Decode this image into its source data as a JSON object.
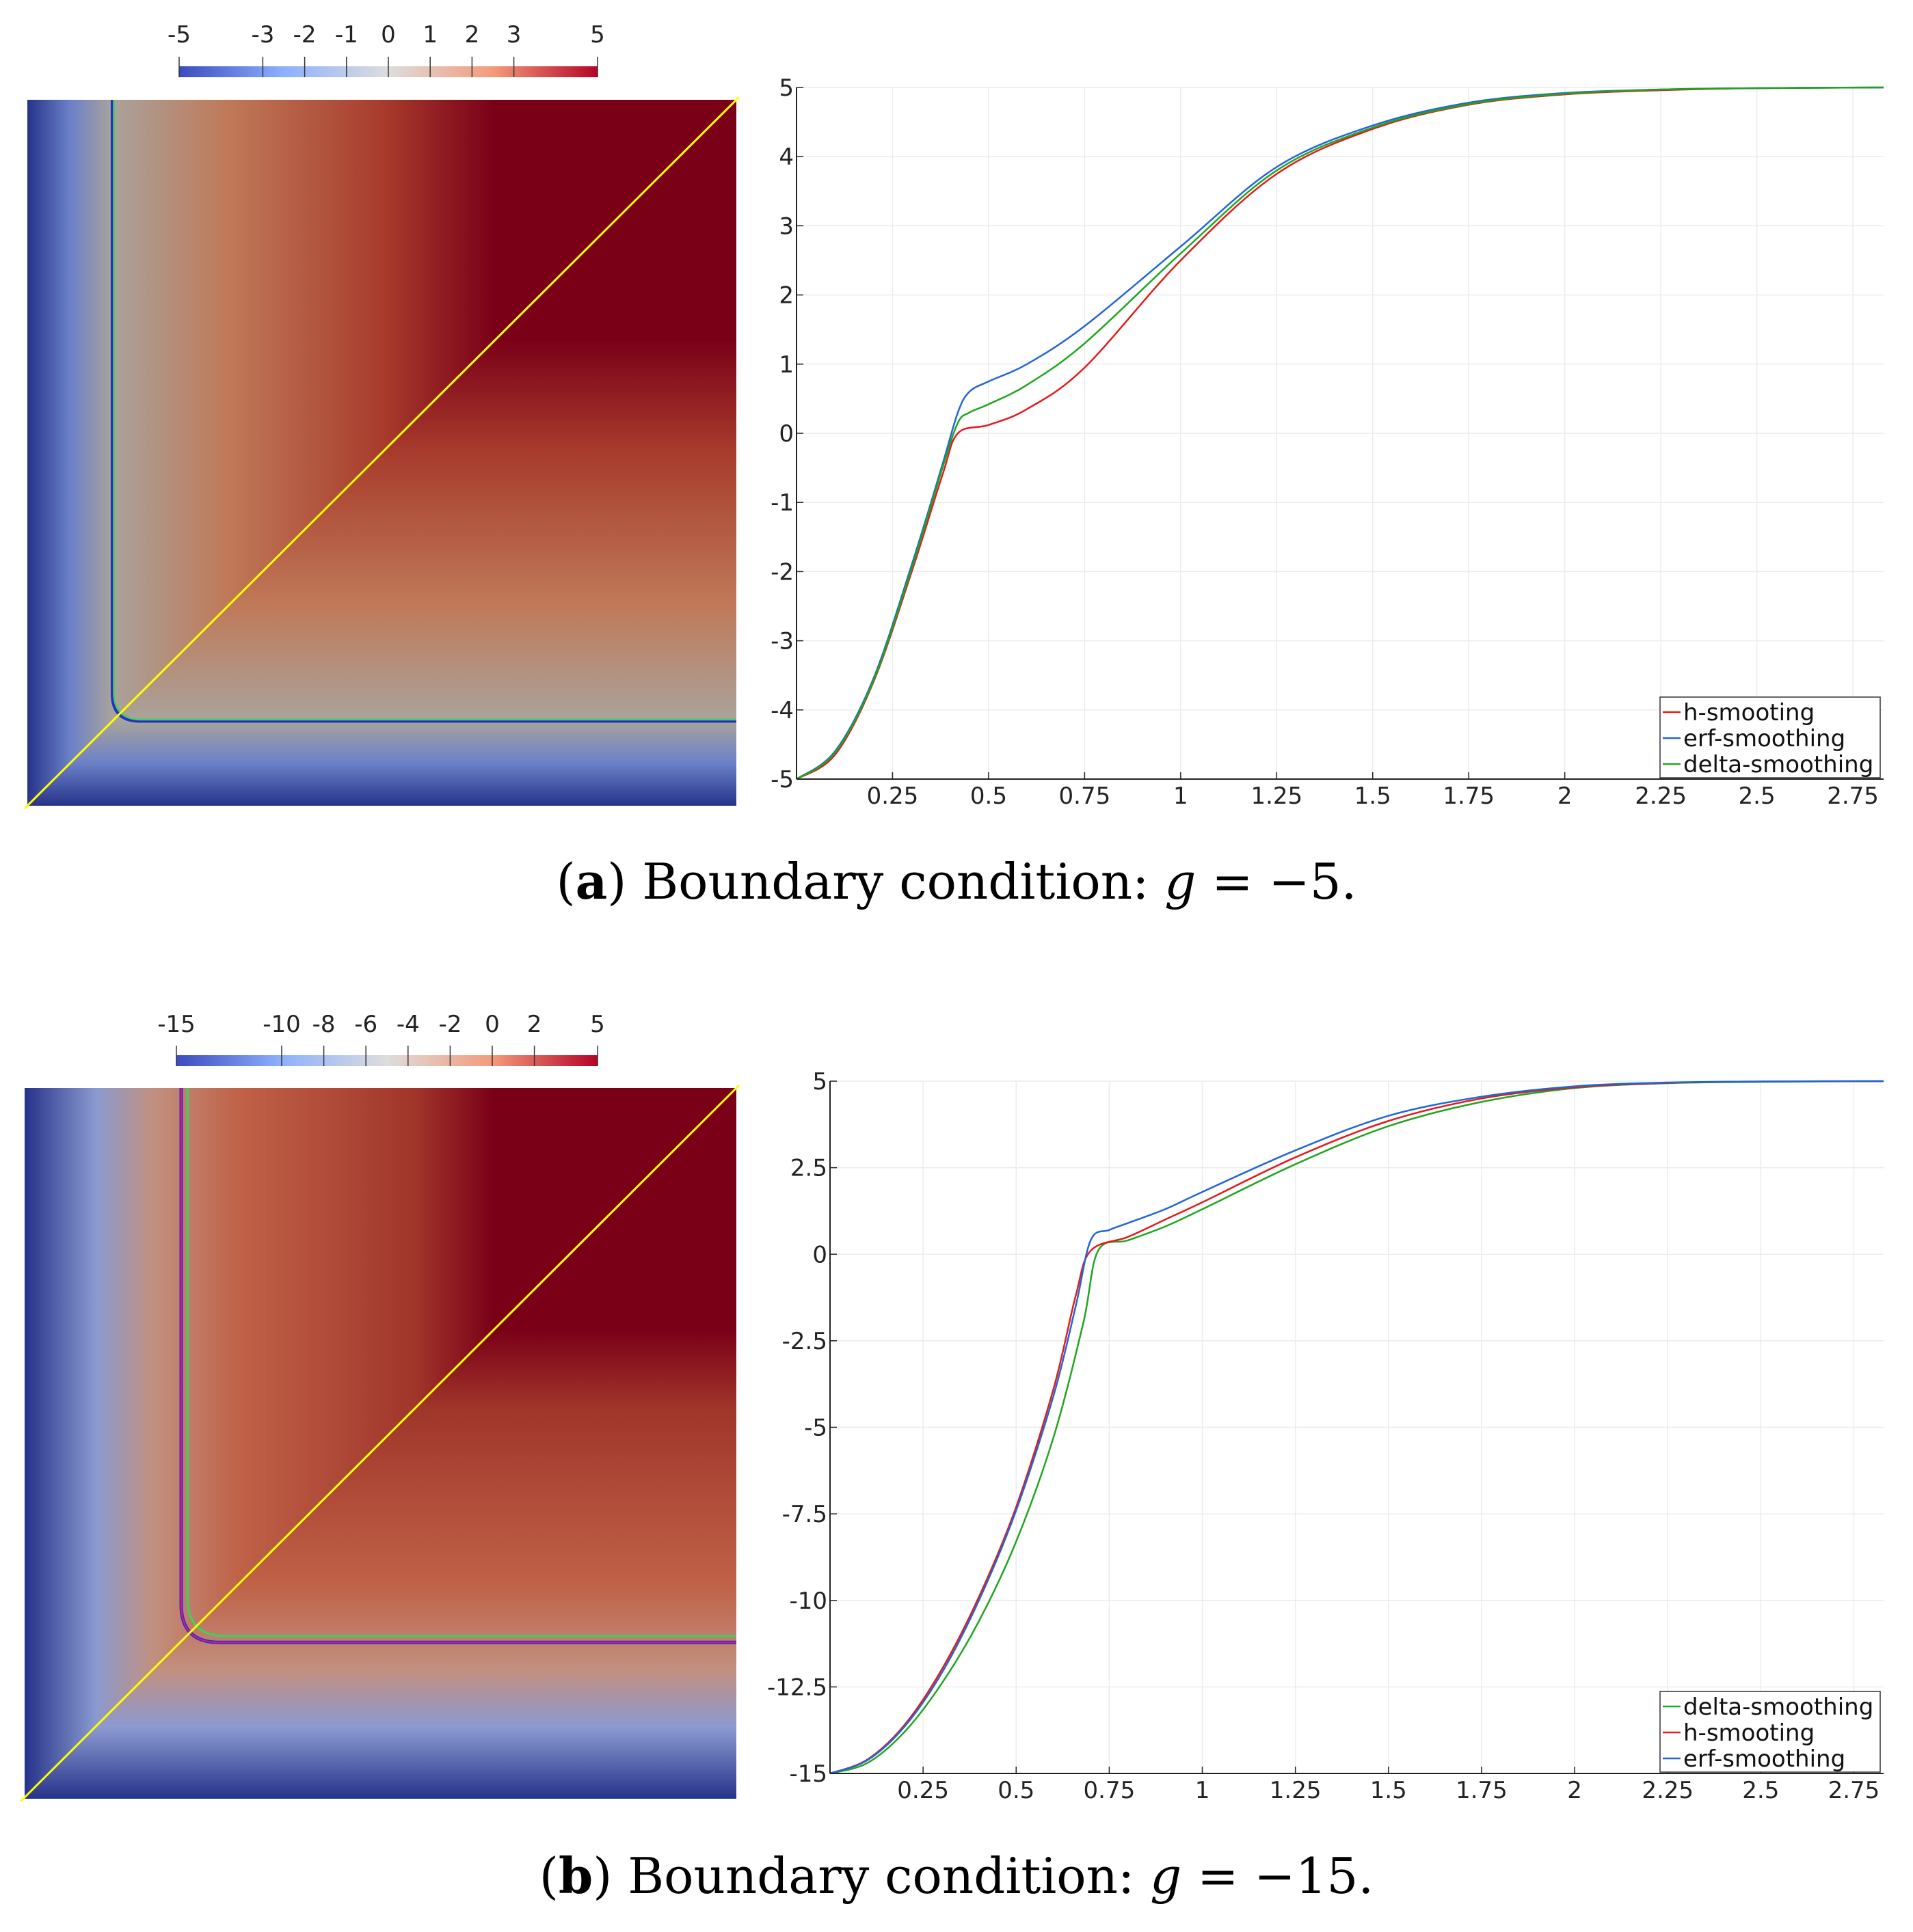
{
  "colors": {
    "cool": "#3b4cc0",
    "neutral": "#dddddd",
    "warm": "#b40426",
    "diagonal": "#ffff00",
    "red_series": "#e41a1c",
    "blue_series": "#2166d6",
    "green_series": "#1fa61f",
    "grid": "#ececec",
    "axis": "#222222"
  },
  "chart_data": [
    {
      "id": "a",
      "type": "line",
      "field_plot": {
        "colorbar_ticks": [
          -5,
          -3,
          -2,
          -1,
          0,
          1,
          2,
          3,
          5
        ],
        "colorbar_labels": [
          "-5",
          "-3",
          "-2",
          "-1",
          "0",
          "1",
          "2",
          "3",
          "5"
        ],
        "range": [
          -5,
          5
        ],
        "interface_offset": 0.12,
        "diagonal": "yellow line y = x"
      },
      "xlim": [
        0,
        2.83
      ],
      "ylim": [
        -5,
        5
      ],
      "xticks": [
        0.25,
        0.5,
        0.75,
        1,
        1.25,
        1.5,
        1.75,
        2,
        2.25,
        2.5,
        2.75
      ],
      "xtick_labels": [
        "0.25",
        "0.5",
        "0.75",
        "1",
        "1.25",
        "1.5",
        "1.75",
        "2",
        "2.25",
        "2.5",
        "2.75"
      ],
      "yticks": [
        -5,
        -4,
        -3,
        -2,
        -1,
        0,
        1,
        2,
        3,
        4,
        5
      ],
      "ytick_labels": [
        "-5",
        "-4",
        "-3",
        "-2",
        "-1",
        "0",
        "1",
        "2",
        "3",
        "4",
        "5"
      ],
      "x0": 0.42,
      "legend_position": "bottom-right",
      "series": [
        {
          "name": "h-smooting",
          "color": "red_series",
          "x": [
            0,
            0.1,
            0.2,
            0.3,
            0.38,
            0.42,
            0.5,
            0.6,
            0.75,
            1.0,
            1.25,
            1.5,
            1.75,
            2.0,
            2.25,
            2.5,
            2.83
          ],
          "y": [
            -5,
            -4.65,
            -3.6,
            -2.0,
            -0.6,
            0,
            0.12,
            0.35,
            0.95,
            2.5,
            3.75,
            4.4,
            4.75,
            4.9,
            4.96,
            4.99,
            5.0
          ]
        },
        {
          "name": "erf-smoothing",
          "color": "blue_series",
          "x": [
            0,
            0.1,
            0.2,
            0.3,
            0.38,
            0.42,
            0.45,
            0.5,
            0.6,
            0.75,
            1.0,
            1.25,
            1.5,
            1.75,
            2.0,
            2.25,
            2.5,
            2.83
          ],
          "y": [
            -5,
            -4.6,
            -3.55,
            -1.9,
            -0.45,
            0.3,
            0.6,
            0.75,
            1.0,
            1.55,
            2.7,
            3.85,
            4.45,
            4.78,
            4.92,
            4.97,
            4.99,
            5.0
          ]
        },
        {
          "name": "delta-smoothing",
          "color": "green_series",
          "x": [
            0,
            0.1,
            0.2,
            0.3,
            0.38,
            0.42,
            0.45,
            0.5,
            0.6,
            0.75,
            1.0,
            1.25,
            1.5,
            1.75,
            2.0,
            2.25,
            2.5,
            2.83
          ],
          "y": [
            -5,
            -4.62,
            -3.58,
            -1.95,
            -0.5,
            0.15,
            0.3,
            0.42,
            0.7,
            1.3,
            2.6,
            3.8,
            4.42,
            4.76,
            4.91,
            4.97,
            4.99,
            5.0
          ]
        }
      ],
      "caption": {
        "label": "a",
        "prefix": "(",
        "suffix": ")",
        "text": "Boundary condition:",
        "variable": "g",
        "equals": "=",
        "value": "−5."
      }
    },
    {
      "id": "b",
      "type": "line",
      "field_plot": {
        "colorbar_ticks": [
          -15,
          -10,
          -8,
          -6,
          -4,
          -2,
          0,
          2,
          5
        ],
        "colorbar_labels": [
          "-15",
          "-10",
          "-8",
          "-6",
          "-4",
          "-2",
          "0",
          "2",
          "5"
        ],
        "range": [
          -15,
          5
        ],
        "interface_offset": 0.22,
        "diagonal": "yellow line y = x"
      },
      "xlim": [
        0,
        2.83
      ],
      "ylim": [
        -15,
        5
      ],
      "xticks": [
        0.25,
        0.5,
        0.75,
        1,
        1.25,
        1.5,
        1.75,
        2,
        2.25,
        2.5,
        2.75
      ],
      "xtick_labels": [
        "0.25",
        "0.5",
        "0.75",
        "1",
        "1.25",
        "1.5",
        "1.75",
        "2",
        "2.25",
        "2.5",
        "2.75"
      ],
      "yticks": [
        -15,
        -12.5,
        -10,
        -7.5,
        -5,
        -2.5,
        0,
        2.5,
        5
      ],
      "ytick_labels": [
        "-15",
        "-12.5",
        "-10",
        "-7.5",
        "-5",
        "-2.5",
        "0",
        "2.5",
        "5"
      ],
      "x0": 0.7,
      "legend_position": "bottom-right",
      "series": [
        {
          "name": "delta-smoothing",
          "color": "green_series",
          "x": [
            0,
            0.1,
            0.2,
            0.3,
            0.4,
            0.5,
            0.6,
            0.68,
            0.72,
            0.8,
            0.9,
            1.0,
            1.25,
            1.5,
            1.75,
            2.0,
            2.25,
            2.5,
            2.83
          ],
          "y": [
            -15,
            -14.7,
            -13.8,
            -12.4,
            -10.6,
            -8.3,
            -5.3,
            -2.0,
            0.1,
            0.4,
            0.8,
            1.3,
            2.6,
            3.7,
            4.4,
            4.8,
            4.94,
            4.98,
            5.0
          ]
        },
        {
          "name": "h-smooting",
          "color": "red_series",
          "x": [
            0,
            0.1,
            0.2,
            0.3,
            0.4,
            0.5,
            0.6,
            0.66,
            0.7,
            0.8,
            0.9,
            1.0,
            1.25,
            1.5,
            1.75,
            2.0,
            2.25,
            2.5,
            2.83
          ],
          "y": [
            -15,
            -14.6,
            -13.6,
            -12.0,
            -9.9,
            -7.3,
            -3.9,
            -1.2,
            0.1,
            0.5,
            1.0,
            1.5,
            2.8,
            3.85,
            4.5,
            4.82,
            4.95,
            4.99,
            5.0
          ]
        },
        {
          "name": "erf-smoothing",
          "color": "blue_series",
          "x": [
            0,
            0.1,
            0.2,
            0.3,
            0.4,
            0.5,
            0.6,
            0.66,
            0.7,
            0.75,
            0.8,
            0.9,
            1.0,
            1.25,
            1.5,
            1.75,
            2.0,
            2.25,
            2.5,
            2.83
          ],
          "y": [
            -15,
            -14.62,
            -13.65,
            -12.1,
            -10.0,
            -7.4,
            -4.1,
            -1.5,
            0.4,
            0.7,
            0.9,
            1.3,
            1.8,
            3.0,
            4.0,
            4.55,
            4.85,
            4.96,
            4.99,
            5.0
          ]
        }
      ],
      "caption": {
        "label": "b",
        "prefix": "(",
        "suffix": ")",
        "text": "Boundary condition:",
        "variable": "g",
        "equals": "=",
        "value": "−15."
      }
    }
  ]
}
